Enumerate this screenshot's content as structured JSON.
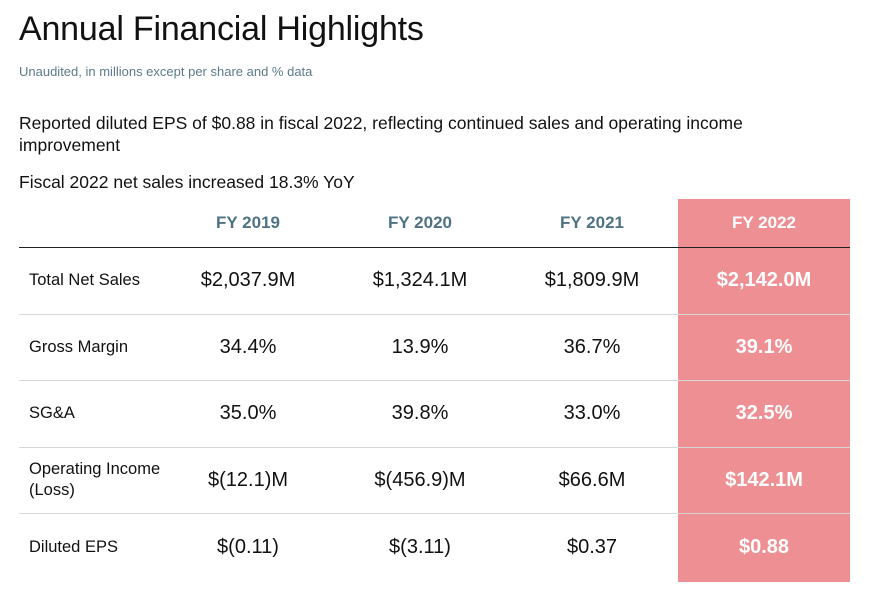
{
  "title": "Annual Financial Highlights",
  "subtitle": "Unaudited, in millions except per share and % data",
  "headline_1": "Reported diluted EPS of $0.88 in fiscal 2022, reflecting continued sales and operating income improvement",
  "headline_2": "Fiscal 2022 net sales increased 18.3% YoY",
  "colors": {
    "highlight_bg": "#ee8f94",
    "header_text": "#4f7383",
    "subtitle_text": "#5b7b8a"
  },
  "chart_data": {
    "type": "table",
    "columns": [
      "FY 2019",
      "FY 2020",
      "FY 2021",
      "FY 2022"
    ],
    "highlighted_column": "FY 2022",
    "rows": [
      {
        "label": "Total Net Sales",
        "values": [
          "$2,037.9M",
          "$1,324.1M",
          "$1,809.9M",
          "$2,142.0M"
        ]
      },
      {
        "label": "Gross Margin",
        "values": [
          "34.4%",
          "13.9%",
          "36.7%",
          "39.1%"
        ]
      },
      {
        "label": "SG&A",
        "values": [
          "35.0%",
          "39.8%",
          "33.0%",
          "32.5%"
        ]
      },
      {
        "label": "Operating Income (Loss)",
        "values": [
          "$(12.1)M",
          "$(456.9)M",
          "$66.6M",
          "$142.1M"
        ]
      },
      {
        "label": "Diluted EPS",
        "values": [
          "$(0.11)",
          "$(3.11)",
          "$0.37",
          "$0.88"
        ]
      }
    ]
  }
}
